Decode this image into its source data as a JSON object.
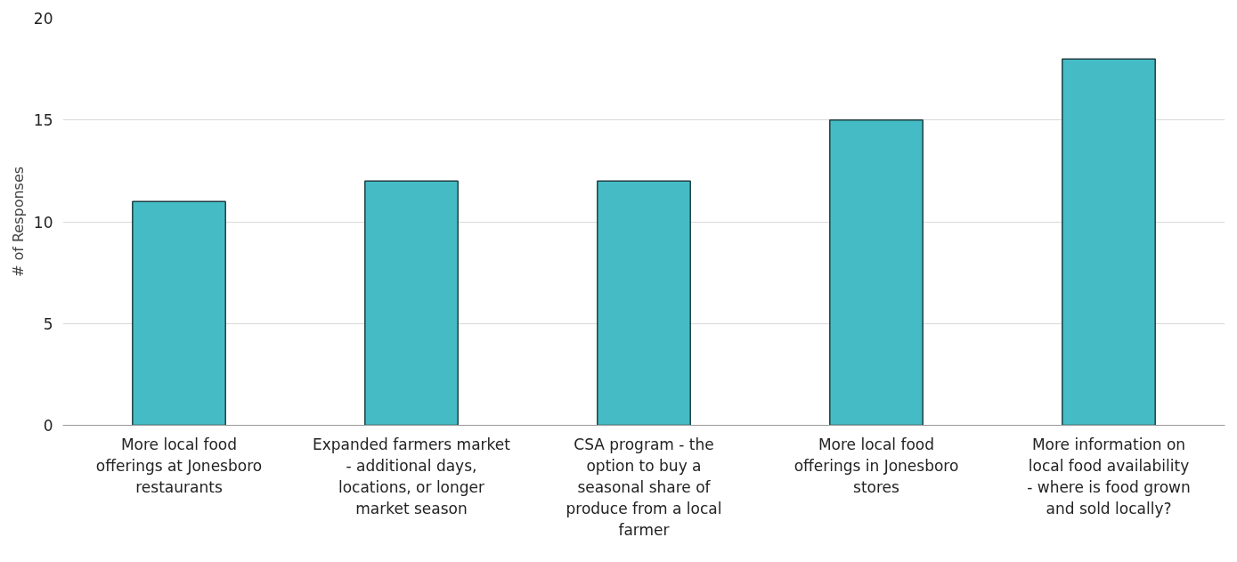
{
  "chart_data": {
    "type": "bar",
    "ylabel": "# of Responses",
    "categories": [
      "More local food offerings at Jonesboro restaurants",
      "Expanded farmers market - additional days, locations, or longer market season",
      "CSA program - the option to buy a seasonal share of produce from a local farmer",
      "More local food offerings in Jonesboro stores",
      "More information on local food availability - where is food grown and sold locally?"
    ],
    "values": [
      11,
      12,
      12,
      15,
      18
    ],
    "color": "#45bcc5",
    "ylim": [
      0,
      20
    ],
    "yticks": [
      0,
      5,
      10,
      15,
      20
    ],
    "grid": "y"
  }
}
